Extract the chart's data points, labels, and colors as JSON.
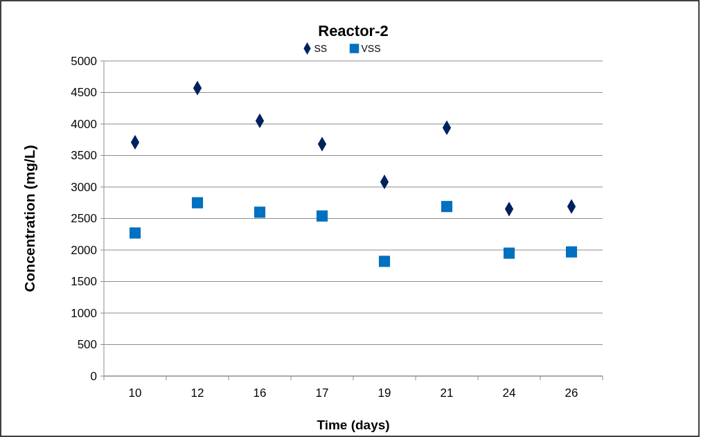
{
  "chart_data": {
    "type": "scatter",
    "title": "Reactor-2",
    "xlabel": "Time (days)",
    "ylabel": "Concentration (mg/L)",
    "categories": [
      "10",
      "12",
      "16",
      "17",
      "19",
      "21",
      "24",
      "26"
    ],
    "series": [
      {
        "name": "SS",
        "color": "#002060",
        "marker": "diamond",
        "values": [
          3710,
          4570,
          4050,
          3680,
          3080,
          3940,
          2650,
          2690
        ]
      },
      {
        "name": "VSS",
        "color": "#0070c0",
        "marker": "square",
        "values": [
          2270,
          2750,
          2600,
          2540,
          1820,
          2690,
          1950,
          1970
        ]
      }
    ],
    "ylim": [
      0,
      5000
    ],
    "yticks": [
      0,
      500,
      1000,
      1500,
      2000,
      2500,
      3000,
      3500,
      4000,
      4500,
      5000
    ],
    "grid": "y",
    "legend": "top"
  }
}
